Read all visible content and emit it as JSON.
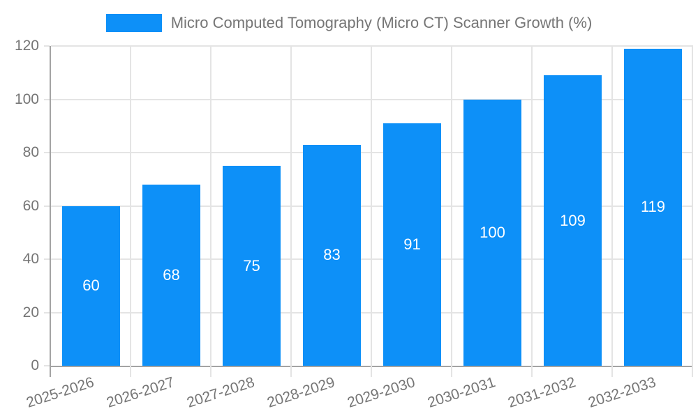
{
  "chart_data": {
    "type": "bar",
    "legend": {
      "label": "Micro Computed Tomography (Micro CT) Scanner Growth (%)",
      "position": "top"
    },
    "categories": [
      "2025-2026",
      "2026-2027",
      "2027-2028",
      "2028-2029",
      "2029-2030",
      "2030-2031",
      "2031-2032",
      "2032-2033"
    ],
    "values": [
      60,
      68,
      75,
      83,
      91,
      100,
      109,
      119
    ],
    "value_labels_shown": true,
    "xlabel": "",
    "ylabel": "",
    "ylim": [
      0,
      120
    ],
    "ytick_step": 20,
    "ytick_labels": [
      "0",
      "20",
      "40",
      "60",
      "80",
      "100",
      "120"
    ],
    "grid": true,
    "x_label_rotation_deg": -18,
    "colors": {
      "bar": "#0d90f8",
      "value_label": "#ffffff",
      "gridline": "#e4e4e4",
      "axis_line": "#a3a3a3",
      "tick_label": "#757575",
      "legend_text": "#757575"
    }
  }
}
